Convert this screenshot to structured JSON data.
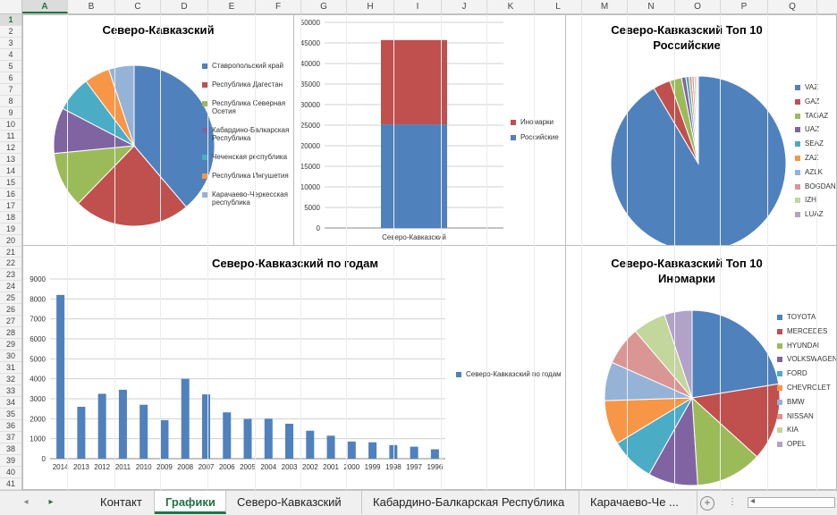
{
  "columns": [
    "A",
    "B",
    "C",
    "D",
    "E",
    "F",
    "G",
    "H",
    "I",
    "J",
    "K",
    "L",
    "M",
    "N",
    "O",
    "P",
    "Q"
  ],
  "selected_column": "A",
  "rows": [
    "1",
    "2",
    "3",
    "4",
    "5",
    "6",
    "7",
    "8",
    "9",
    "10",
    "11",
    "12",
    "13",
    "14",
    "15",
    "16",
    "17",
    "18",
    "19",
    "20",
    "21",
    "22",
    "23",
    "24",
    "25",
    "26",
    "27",
    "28",
    "29",
    "30",
    "31",
    "32",
    "33",
    "34",
    "35",
    "36",
    "37",
    "38",
    "39",
    "40",
    "41"
  ],
  "selected_row": "1",
  "colors": {
    "blue": "#4f81bd",
    "red": "#c0504d",
    "green": "#9bbb59",
    "purple": "#8064a2",
    "teal": "#4bacc6",
    "orange": "#f79646",
    "lightblue": "#95b3d7",
    "pink": "#d99694",
    "lightgreen": "#c3d69b",
    "lavender": "#b3a2c7"
  },
  "chart_data": [
    {
      "id": "regions",
      "type": "pie",
      "title": "Северо-Кавказский",
      "labels": [
        "Ставропольский край",
        "Республика Дагестан",
        "Республика Северная Осетия",
        "Кабардино-Балкарская Республика",
        "Чеченская республика",
        "Республика Ингушетия",
        "Карачаево-Черкесская республика"
      ],
      "values": [
        38,
        23,
        11,
        9,
        7,
        5,
        5
      ],
      "colors": [
        "#4f81bd",
        "#c0504d",
        "#9bbb59",
        "#8064a2",
        "#4bacc6",
        "#f79646",
        "#95b3d7"
      ],
      "legend": "right"
    },
    {
      "id": "stacked",
      "type": "bar",
      "stacked": true,
      "categories": [
        "Северо-Кавказский"
      ],
      "series": [
        {
          "name": "Российские",
          "values": [
            25200
          ],
          "color": "#4f81bd"
        },
        {
          "name": "Иномарки",
          "values": [
            20500
          ],
          "color": "#c0504d"
        }
      ],
      "legend_order": [
        "Иномарки",
        "Российские"
      ],
      "yticks": [
        "0",
        "5000",
        "10000",
        "15000",
        "20000",
        "25000",
        "30000",
        "35000",
        "40000",
        "45000",
        "50000"
      ],
      "ylim": [
        0,
        50000
      ],
      "grid": true,
      "legend": "right"
    },
    {
      "id": "top10_ru",
      "type": "pie",
      "title": "Северо-Кавказский Топ 10 Российские",
      "labels": [
        "VAZ",
        "GAZ",
        "TAGAZ",
        "UAZ",
        "SEAZ",
        "ZAZ",
        "AZLK",
        "BOGDAN",
        "IZH",
        "LUAZ"
      ],
      "values": [
        91.5,
        3.2,
        2.2,
        0.8,
        0.6,
        0.5,
        0.4,
        0.3,
        0.3,
        0.2
      ],
      "colors": [
        "#4f81bd",
        "#c0504d",
        "#9bbb59",
        "#8064a2",
        "#4bacc6",
        "#f79646",
        "#95b3d7",
        "#d99694",
        "#c3d69b",
        "#b3a2c7"
      ],
      "legend": "right"
    },
    {
      "id": "years",
      "type": "bar",
      "title": "Северо-Кавказский по годам",
      "categories": [
        "2014",
        "2013",
        "2012",
        "2011",
        "2010",
        "2009",
        "2008",
        "2007",
        "2006",
        "2005",
        "2004",
        "2003",
        "2002",
        "2001",
        "2000",
        "1999",
        "1998",
        "1997",
        "1996"
      ],
      "series": [
        {
          "name": "Северо-Кавказский по годам",
          "values": [
            8200,
            2600,
            3250,
            3450,
            2700,
            1930,
            4000,
            3220,
            2320,
            1990,
            2000,
            1750,
            1400,
            1150,
            860,
            820,
            680,
            600,
            470
          ],
          "color": "#4f81bd"
        }
      ],
      "yticks": [
        "0",
        "1000",
        "2000",
        "3000",
        "4000",
        "5000",
        "6000",
        "7000",
        "8000",
        "9000"
      ],
      "ylim": [
        0,
        9000
      ],
      "grid": true,
      "legend": "right"
    },
    {
      "id": "top10_foreign",
      "type": "pie",
      "title": "Северо-Кавказский Топ 10 Иномарки",
      "labels": [
        "TOYOTA",
        "MERCEDES",
        "HYUNDAI",
        "VOLKSWAGEN",
        "FORD",
        "CHEVROLET",
        "BMW",
        "NISSAN",
        "KIA",
        "OPEL"
      ],
      "values": [
        22,
        14,
        12,
        9,
        8,
        8,
        7,
        7,
        6,
        5
      ],
      "colors": [
        "#4f81bd",
        "#c0504d",
        "#9bbb59",
        "#8064a2",
        "#4bacc6",
        "#f79646",
        "#95b3d7",
        "#d99694",
        "#c3d69b",
        "#b3a2c7"
      ],
      "legend": "right"
    }
  ],
  "tabs": [
    {
      "label": "Контакт",
      "active": false
    },
    {
      "label": "Графики",
      "active": true
    },
    {
      "label": "Северо-Кавказский",
      "active": false
    },
    {
      "label": "Кабардино-Балкарская Республика",
      "active": false
    },
    {
      "label": "Карачаево-Че ...",
      "active": false
    }
  ],
  "tabbar": {
    "prev_icon": "◂",
    "next_icon": "▸",
    "add_icon": "+",
    "more_icon": "⋮",
    "scroll_left_icon": "◂"
  }
}
